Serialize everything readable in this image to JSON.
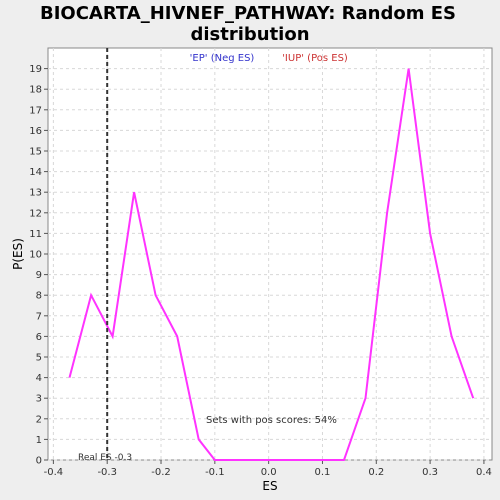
{
  "chart_data": {
    "type": "line",
    "title_line1": "BIOCARTA_HIVNEF_PATHWAY: Random ES",
    "title_line2": "distribution",
    "xlabel": "ES",
    "ylabel": "P(ES)",
    "xlim": [
      -0.41,
      0.415
    ],
    "ylim": [
      0,
      20
    ],
    "xticks": [
      -0.4,
      -0.3,
      -0.2,
      -0.1,
      0.0,
      0.1,
      0.2,
      0.3,
      0.4
    ],
    "xtick_labels": [
      "-0.4",
      "-0.3",
      "-0.2",
      "-0.1",
      "0.0",
      "0.1",
      "0.2",
      "0.3",
      "0.4"
    ],
    "yticks": [
      0,
      1,
      2,
      3,
      4,
      5,
      6,
      7,
      8,
      9,
      10,
      11,
      12,
      13,
      14,
      15,
      16,
      17,
      18,
      19
    ],
    "ytick_labels": [
      "0",
      "1",
      "2",
      "3",
      "4",
      "5",
      "6",
      "7",
      "8",
      "9",
      "10",
      "11",
      "12",
      "13",
      "14",
      "15",
      "16",
      "17",
      "18",
      "19"
    ],
    "grid": true,
    "series": [
      {
        "color": "#ff33ff",
        "x": [
          -0.37,
          -0.33,
          -0.29,
          -0.25,
          -0.21,
          -0.17,
          -0.13,
          -0.1,
          -0.06,
          -0.02,
          0.02,
          0.06,
          0.1,
          0.14,
          0.18,
          0.22,
          0.26,
          0.3,
          0.34,
          0.38
        ],
        "y": [
          4,
          8,
          6,
          13,
          8,
          6,
          1,
          0,
          0,
          0,
          0,
          0,
          0,
          0,
          3,
          12,
          19,
          11,
          6,
          3
        ]
      }
    ],
    "real_es": -0.3,
    "legend_neg": "'EP' (Neg ES)",
    "legend_pos": "'IUP' (Pos ES)",
    "legend_neg_color": "#3333cc",
    "legend_pos_color": "#cc3333",
    "annotation_pos": "Sets with pos scores: 54%",
    "annotation_real": "Real ES -0.3"
  }
}
